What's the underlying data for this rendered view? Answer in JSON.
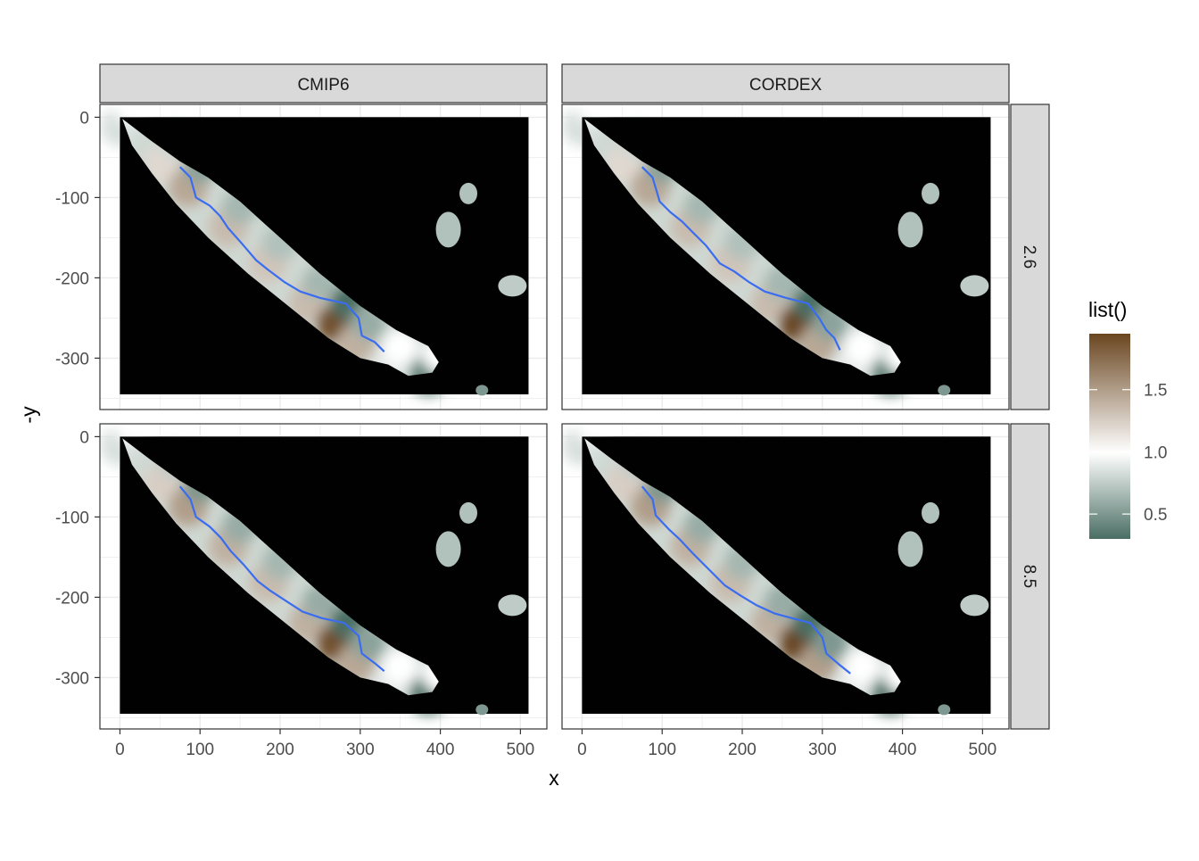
{
  "chart_data": {
    "type": "heatmap",
    "xlabel": "x",
    "ylabel": "-y",
    "x_ticks": [
      0,
      100,
      200,
      300,
      400,
      500
    ],
    "y_ticks": [
      0,
      -100,
      -200,
      -300
    ],
    "xlim": [
      -25,
      533
    ],
    "ylim": [
      -364,
      16
    ],
    "raster_extent": {
      "x": [
        0,
        510
      ],
      "y": [
        -345,
        0
      ]
    },
    "facet_cols": [
      "CMIP6",
      "CORDEX"
    ],
    "facet_rows": [
      "2.6",
      "8.5"
    ],
    "legend": {
      "title": "list()",
      "ticks": [
        0.5,
        1.0,
        1.5
      ],
      "tick_labels": [
        "0.5",
        "1.0",
        "1.5"
      ],
      "range": [
        0.3,
        1.95
      ],
      "colors": {
        "low": "#4a6e63",
        "mid": "#ffffff",
        "high": "#6a4620"
      },
      "position": "right"
    },
    "background_color": "#010101",
    "contour_color": "#3a6cf0",
    "grid": true,
    "panels": [
      {
        "col": "CMIP6",
        "row": "2.6",
        "ridge": [
          {
            "x": 5,
            "y": 0,
            "v": 0.85
          },
          {
            "x": 60,
            "y": -45,
            "v": 1.2
          },
          {
            "x": 90,
            "y": -75,
            "v": 1.45
          },
          {
            "x": 140,
            "y": -125,
            "v": 1.35
          },
          {
            "x": 190,
            "y": -170,
            "v": 1.3
          },
          {
            "x": 240,
            "y": -220,
            "v": 1.35
          },
          {
            "x": 275,
            "y": -245,
            "v": 1.9
          },
          {
            "x": 300,
            "y": -270,
            "v": 1.4
          },
          {
            "x": 340,
            "y": -300,
            "v": 0.9
          },
          {
            "x": 390,
            "y": -310,
            "v": 0.4
          }
        ],
        "contour": [
          [
            75,
            -62
          ],
          [
            88,
            -75
          ],
          [
            95,
            -100
          ],
          [
            112,
            -110
          ],
          [
            125,
            -123
          ],
          [
            135,
            -138
          ],
          [
            152,
            -157
          ],
          [
            170,
            -178
          ],
          [
            185,
            -190
          ],
          [
            205,
            -205
          ],
          [
            225,
            -217
          ],
          [
            250,
            -225
          ],
          [
            282,
            -232
          ],
          [
            298,
            -250
          ],
          [
            302,
            -272
          ],
          [
            318,
            -280
          ],
          [
            330,
            -292
          ]
        ]
      },
      {
        "col": "CORDEX",
        "row": "2.6",
        "ridge": [
          {
            "x": 5,
            "y": 0,
            "v": 0.85
          },
          {
            "x": 60,
            "y": -45,
            "v": 1.2
          },
          {
            "x": 90,
            "y": -75,
            "v": 1.45
          },
          {
            "x": 140,
            "y": -125,
            "v": 1.35
          },
          {
            "x": 190,
            "y": -170,
            "v": 1.3
          },
          {
            "x": 240,
            "y": -220,
            "v": 1.35
          },
          {
            "x": 275,
            "y": -245,
            "v": 1.95
          },
          {
            "x": 300,
            "y": -270,
            "v": 1.45
          },
          {
            "x": 340,
            "y": -300,
            "v": 0.9
          },
          {
            "x": 390,
            "y": -310,
            "v": 0.4
          }
        ],
        "contour": [
          [
            75,
            -62
          ],
          [
            88,
            -75
          ],
          [
            97,
            -105
          ],
          [
            110,
            -118
          ],
          [
            125,
            -130
          ],
          [
            138,
            -143
          ],
          [
            155,
            -160
          ],
          [
            172,
            -182
          ],
          [
            190,
            -192
          ],
          [
            208,
            -205
          ],
          [
            228,
            -217
          ],
          [
            255,
            -225
          ],
          [
            282,
            -232
          ],
          [
            296,
            -250
          ],
          [
            305,
            -265
          ],
          [
            315,
            -275
          ],
          [
            322,
            -290
          ]
        ]
      },
      {
        "col": "CMIP6",
        "row": "8.5",
        "ridge": [
          {
            "x": 5,
            "y": 0,
            "v": 0.85
          },
          {
            "x": 60,
            "y": -45,
            "v": 1.25
          },
          {
            "x": 90,
            "y": -75,
            "v": 1.5
          },
          {
            "x": 140,
            "y": -125,
            "v": 1.4
          },
          {
            "x": 190,
            "y": -170,
            "v": 1.35
          },
          {
            "x": 240,
            "y": -220,
            "v": 1.4
          },
          {
            "x": 275,
            "y": -245,
            "v": 1.9
          },
          {
            "x": 300,
            "y": -270,
            "v": 1.45
          },
          {
            "x": 340,
            "y": -300,
            "v": 0.9
          },
          {
            "x": 390,
            "y": -310,
            "v": 0.35
          }
        ],
        "contour": [
          [
            75,
            -62
          ],
          [
            88,
            -78
          ],
          [
            95,
            -100
          ],
          [
            112,
            -112
          ],
          [
            126,
            -126
          ],
          [
            138,
            -142
          ],
          [
            155,
            -160
          ],
          [
            172,
            -180
          ],
          [
            188,
            -192
          ],
          [
            208,
            -205
          ],
          [
            228,
            -218
          ],
          [
            252,
            -226
          ],
          [
            280,
            -232
          ],
          [
            298,
            -248
          ],
          [
            302,
            -270
          ],
          [
            318,
            -282
          ],
          [
            330,
            -292
          ]
        ]
      },
      {
        "col": "CORDEX",
        "row": "8.5",
        "ridge": [
          {
            "x": 5,
            "y": 0,
            "v": 0.85
          },
          {
            "x": 60,
            "y": -45,
            "v": 1.25
          },
          {
            "x": 90,
            "y": -75,
            "v": 1.5
          },
          {
            "x": 140,
            "y": -125,
            "v": 1.4
          },
          {
            "x": 190,
            "y": -170,
            "v": 1.35
          },
          {
            "x": 240,
            "y": -220,
            "v": 1.4
          },
          {
            "x": 275,
            "y": -245,
            "v": 1.95
          },
          {
            "x": 300,
            "y": -270,
            "v": 1.5
          },
          {
            "x": 340,
            "y": -300,
            "v": 0.9
          },
          {
            "x": 390,
            "y": -310,
            "v": 0.35
          }
        ],
        "contour": [
          [
            75,
            -62
          ],
          [
            88,
            -78
          ],
          [
            92,
            -98
          ],
          [
            108,
            -115
          ],
          [
            122,
            -128
          ],
          [
            138,
            -145
          ],
          [
            158,
            -165
          ],
          [
            178,
            -185
          ],
          [
            198,
            -198
          ],
          [
            218,
            -210
          ],
          [
            240,
            -220
          ],
          [
            262,
            -226
          ],
          [
            285,
            -232
          ],
          [
            300,
            -250
          ],
          [
            305,
            -270
          ],
          [
            320,
            -283
          ],
          [
            335,
            -295
          ]
        ]
      }
    ]
  }
}
